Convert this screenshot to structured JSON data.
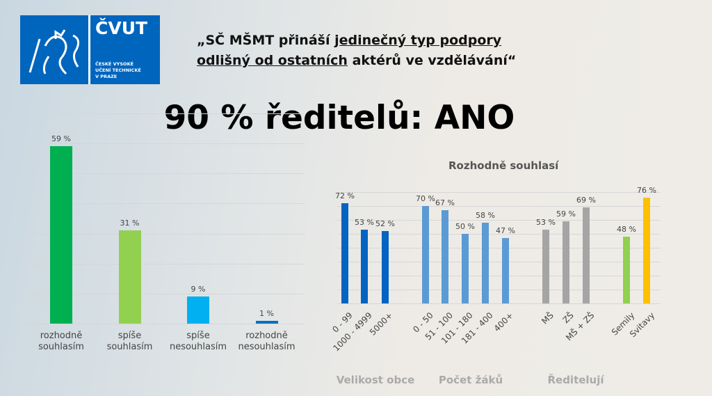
{
  "logo": {
    "name": "ČVUT",
    "sub": [
      "ČESKÉ VYSOKÉ",
      "UČENÍ TECHNICKÉ",
      "V PRAZE"
    ],
    "color": "#0065bd"
  },
  "quote": {
    "part1": "„SČ MŠMT přináší ",
    "part2": "jedinečný typ podpory",
    "part3": "odlišný od ostatních",
    "part4": " aktérů ve vzdělávání“"
  },
  "headline": "90 % ředitelů: ANO",
  "chart_data": [
    {
      "type": "bar",
      "title": "",
      "categories": [
        "rozhodně souhlasím",
        "spíše souhlasím",
        "spíše nesouhlasím",
        "rozhodně nesouhlasím"
      ],
      "values": [
        59,
        31,
        9,
        1
      ],
      "labels": [
        "59 %",
        "31 %",
        "9 %",
        "1 %"
      ],
      "colors": [
        "#00b050",
        "#92d050",
        "#00b0f0",
        "#0070c0"
      ],
      "ylim": [
        0,
        70
      ],
      "grid": true
    },
    {
      "type": "bar",
      "title": "Rozhodně souhlasí",
      "ylim": [
        0,
        80
      ],
      "grid": true,
      "groups": [
        {
          "name": "Velikost obce",
          "color": "#0563c1",
          "categories": [
            "0 - 99",
            "1000 - 4999",
            "5000+"
          ],
          "values": [
            72,
            53,
            52
          ],
          "labels": [
            "72 %",
            "53 %",
            "52 %"
          ]
        },
        {
          "name": "Počet žáků",
          "color": "#5b9bd5",
          "categories": [
            "0 - 50",
            "51 - 100",
            "101 - 180",
            "181 - 400",
            "400+"
          ],
          "values": [
            70,
            67,
            50,
            58,
            47
          ],
          "labels": [
            "70 %",
            "67 %",
            "50 %",
            "58 %",
            "47 %"
          ]
        },
        {
          "name": "Ředitelují",
          "color": "#a5a5a5",
          "categories": [
            "MŠ",
            "ZŠ",
            "MŠ + ZŠ"
          ],
          "values": [
            53,
            59,
            69
          ],
          "labels": [
            "53 %",
            "59 %",
            "69 %"
          ]
        },
        {
          "name": "",
          "colors": [
            "#92d050",
            "#ffc000"
          ],
          "categories": [
            "Semily",
            "Svitavy"
          ],
          "values": [
            48,
            76
          ],
          "labels": [
            "48 %",
            "76 %"
          ]
        }
      ]
    }
  ]
}
